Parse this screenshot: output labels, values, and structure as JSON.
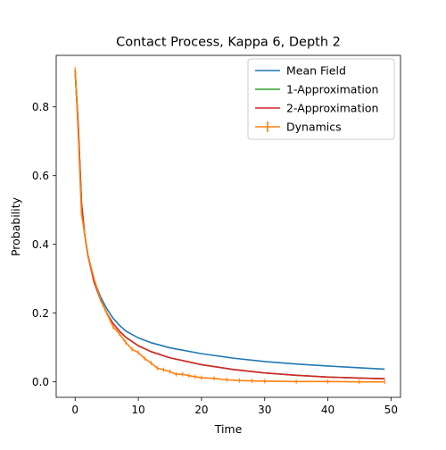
{
  "chart_data": {
    "type": "line",
    "title": "Contact Process, Kappa 6, Depth 2",
    "xlabel": "Time",
    "ylabel": "Probability",
    "xlim": [
      -3,
      51.5
    ],
    "ylim": [
      -0.045,
      0.95
    ],
    "xticks": [
      0,
      10,
      20,
      30,
      40,
      50
    ],
    "yticks": [
      0.0,
      0.2,
      0.4,
      0.6,
      0.8
    ],
    "ytick_labels": [
      "0.0",
      "0.2",
      "0.4",
      "0.6",
      "0.8"
    ],
    "grid": false,
    "legend_position": "top-right",
    "series": [
      {
        "name": "Mean Field",
        "color": "#1f77b4",
        "x": [
          0,
          0.5,
          1,
          1.5,
          2,
          3,
          4,
          5,
          6,
          7,
          8,
          10,
          12,
          15,
          20,
          25,
          30,
          35,
          40,
          45,
          49
        ],
        "y": [
          0.905,
          0.74,
          0.52,
          0.43,
          0.37,
          0.295,
          0.248,
          0.213,
          0.185,
          0.165,
          0.148,
          0.128,
          0.114,
          0.099,
          0.082,
          0.069,
          0.059,
          0.052,
          0.046,
          0.041,
          0.037
        ]
      },
      {
        "name": "1-Approximation",
        "color": "#2ca02c",
        "x": [
          0,
          0.5,
          1,
          1.5,
          2,
          3,
          4,
          5,
          6,
          7,
          8,
          10,
          12,
          15,
          20,
          25,
          30,
          35,
          40,
          45,
          49
        ],
        "y": [
          0.905,
          0.74,
          0.52,
          0.43,
          0.37,
          0.29,
          0.24,
          0.2,
          0.17,
          0.148,
          0.13,
          0.105,
          0.088,
          0.07,
          0.05,
          0.036,
          0.026,
          0.019,
          0.014,
          0.011,
          0.009
        ]
      },
      {
        "name": "2-Approximation",
        "color": "#d62728",
        "x": [
          0,
          0.5,
          1,
          1.5,
          2,
          3,
          4,
          5,
          6,
          7,
          8,
          10,
          12,
          15,
          20,
          25,
          30,
          35,
          40,
          45,
          49
        ],
        "y": [
          0.905,
          0.74,
          0.52,
          0.43,
          0.37,
          0.29,
          0.24,
          0.2,
          0.17,
          0.148,
          0.13,
          0.105,
          0.088,
          0.07,
          0.05,
          0.036,
          0.026,
          0.019,
          0.014,
          0.011,
          0.009
        ]
      },
      {
        "name": "Dynamics",
        "color": "#ff7f0e",
        "errorbars": true,
        "x": [
          0,
          0.5,
          1,
          1.5,
          2,
          3,
          4,
          5,
          6,
          7,
          8,
          9,
          10,
          11,
          12,
          13,
          14,
          15,
          16,
          17,
          18,
          19,
          20,
          22,
          24,
          26,
          28,
          30,
          35,
          40,
          45,
          49
        ],
        "y": [
          0.91,
          0.72,
          0.49,
          0.43,
          0.37,
          0.3,
          0.24,
          0.2,
          0.16,
          0.14,
          0.115,
          0.095,
          0.085,
          0.068,
          0.055,
          0.04,
          0.035,
          0.03,
          0.022,
          0.022,
          0.018,
          0.015,
          0.012,
          0.01,
          0.006,
          0.004,
          0.003,
          0.002,
          0.001,
          0.001,
          0.0,
          0.0
        ]
      }
    ]
  }
}
